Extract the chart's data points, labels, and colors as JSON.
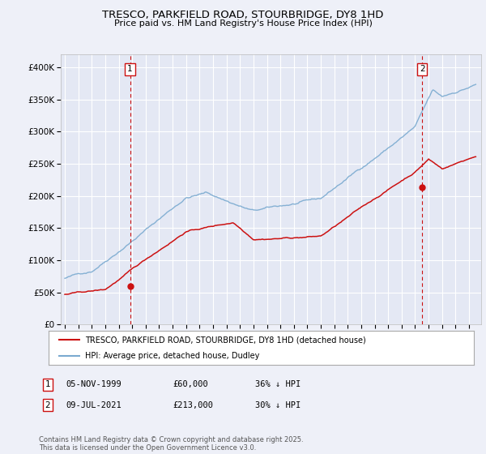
{
  "title": "TRESCO, PARKFIELD ROAD, STOURBRIDGE, DY8 1HD",
  "subtitle": "Price paid vs. HM Land Registry's House Price Index (HPI)",
  "background_color": "#eef0f8",
  "plot_bg_color": "#e4e8f4",
  "grid_color": "#ffffff",
  "hpi_color": "#7aaad0",
  "price_color": "#cc1111",
  "marker1_x": 1999.84,
  "marker1_y": 60000,
  "marker2_x": 2021.52,
  "marker2_y": 213000,
  "legend_line1": "TRESCO, PARKFIELD ROAD, STOURBRIDGE, DY8 1HD (detached house)",
  "legend_line2": "HPI: Average price, detached house, Dudley",
  "footnote": "Contains HM Land Registry data © Crown copyright and database right 2025.\nThis data is licensed under the Open Government Licence v3.0.",
  "ylim": [
    0,
    420000
  ],
  "yticks": [
    0,
    50000,
    100000,
    150000,
    200000,
    250000,
    300000,
    350000,
    400000
  ],
  "ytick_labels": [
    "£0",
    "£50K",
    "£100K",
    "£150K",
    "£200K",
    "£250K",
    "£300K",
    "£350K",
    "£400K"
  ],
  "xlim_left": 1994.7,
  "xlim_right": 2025.9,
  "xticks": [
    1995,
    1996,
    1997,
    1998,
    1999,
    2000,
    2001,
    2002,
    2003,
    2004,
    2005,
    2006,
    2007,
    2008,
    2009,
    2010,
    2011,
    2012,
    2013,
    2014,
    2015,
    2016,
    2017,
    2018,
    2019,
    2020,
    2021,
    2022,
    2023,
    2024,
    2025
  ]
}
